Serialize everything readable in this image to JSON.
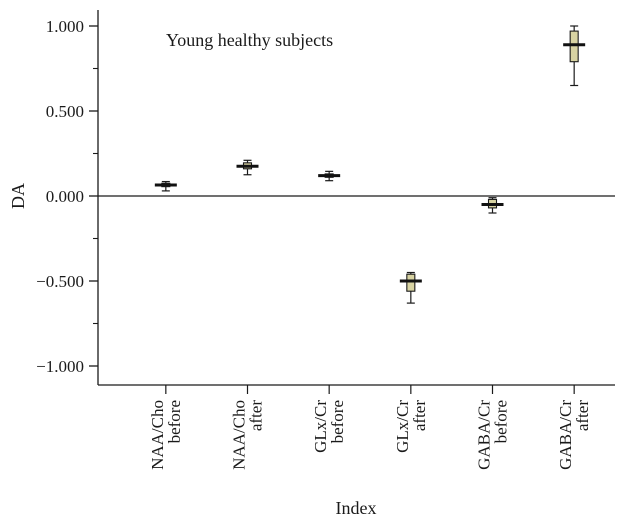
{
  "chart_data": {
    "type": "box",
    "title": "",
    "annotation": "Young healthy subjects",
    "xlabel": "Index",
    "ylabel": "DA",
    "ylim": [
      -1.1,
      1.1
    ],
    "yticks": [
      1.0,
      0.5,
      0.0,
      -0.5,
      -1.0
    ],
    "ytick_labels": [
      "1.000",
      "0.500",
      "0.000",
      "−0.500",
      "−1.000"
    ],
    "zero_line": true,
    "box_color": "#d8d3a2",
    "categories": [
      {
        "label": [
          "NAA/Cho",
          "before"
        ],
        "min": 0.03,
        "q1": 0.055,
        "median": 0.065,
        "q3": 0.075,
        "max": 0.085
      },
      {
        "label": [
          "NAA/Cho",
          "after"
        ],
        "min": 0.125,
        "q1": 0.16,
        "median": 0.175,
        "q3": 0.195,
        "max": 0.21
      },
      {
        "label": [
          "GLx/Cr",
          "before"
        ],
        "min": 0.09,
        "q1": 0.11,
        "median": 0.12,
        "q3": 0.13,
        "max": 0.145
      },
      {
        "label": [
          "GLx/Cr",
          "after"
        ],
        "min": -0.63,
        "q1": -0.56,
        "median": -0.5,
        "q3": -0.46,
        "max": -0.45
      },
      {
        "label": [
          "GABA/Cr",
          "before"
        ],
        "min": -0.1,
        "q1": -0.07,
        "median": -0.05,
        "q3": -0.02,
        "max": -0.01
      },
      {
        "label": [
          "GABA/Cr",
          "after"
        ],
        "min": 0.65,
        "q1": 0.79,
        "median": 0.89,
        "q3": 0.97,
        "max": 1.0
      }
    ]
  }
}
